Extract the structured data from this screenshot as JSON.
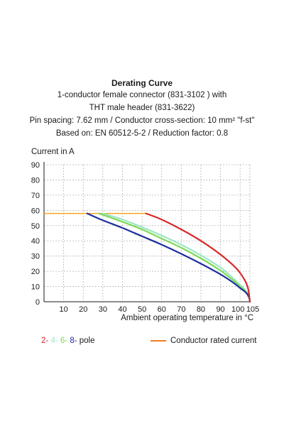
{
  "chart_data": {
    "type": "line",
    "title": "Derating Curve",
    "subtitle_lines": [
      "1-conductor female connector (831-3102 ) with",
      "THT male header (831-3622)",
      "Pin spacing: 7.62 mm / Conductor cross-section: 10 mm² \"f-st\"",
      "Based on: EN 60512-5-2 / Reduction factor: 0.8"
    ],
    "ylabel": "Current in A",
    "xlabel": "Ambient operating temperature in °C",
    "xlim": [
      0,
      105
    ],
    "ylim": [
      0,
      90
    ],
    "xticks": [
      10,
      20,
      30,
      40,
      50,
      60,
      70,
      80,
      90,
      100,
      105
    ],
    "yticks": [
      0,
      10,
      20,
      30,
      40,
      50,
      60,
      70,
      80,
      90
    ],
    "grid": true,
    "rated_current": {
      "value": 58,
      "color": "#f5a623",
      "x_start": 0,
      "x_end": 52
    },
    "series": [
      {
        "name": "2-",
        "color": "#d62a2a",
        "x": [
          52,
          60,
          70,
          80,
          90,
          98,
          102,
          104,
          105
        ],
        "y": [
          58,
          54,
          47.5,
          40,
          31,
          22,
          15,
          9,
          0
        ]
      },
      {
        "name": "4-",
        "color": "#9de6c6",
        "x": [
          30,
          40,
          50,
          60,
          70,
          80,
          90,
          96,
          100,
          103,
          104.5,
          105
        ],
        "y": [
          58,
          54,
          49,
          43.5,
          37.5,
          30.5,
          22.5,
          16,
          11,
          7,
          4,
          0
        ]
      },
      {
        "name": "6-",
        "color": "#7ed957",
        "x": [
          28,
          40,
          50,
          60,
          70,
          80,
          90,
          96,
          100,
          103,
          104.5,
          105
        ],
        "y": [
          58,
          52.5,
          47.5,
          41.5,
          35.5,
          28.5,
          20.5,
          14.5,
          10,
          6.5,
          3.5,
          0
        ]
      },
      {
        "name": "8-",
        "color": "#1c2f9e",
        "x": [
          22,
          30,
          40,
          50,
          60,
          70,
          80,
          90,
          96,
          100,
          103,
          104.5,
          105
        ],
        "y": [
          58,
          53.5,
          48.5,
          43,
          37.5,
          31.5,
          25,
          18,
          13,
          9,
          6,
          3,
          0
        ]
      }
    ],
    "legend": {
      "poles": [
        {
          "label": "2-",
          "color": "#d62a2a"
        },
        {
          "label": "4-",
          "color": "#9de6c6"
        },
        {
          "label": "6-",
          "color": "#7ed957"
        },
        {
          "label": "8-",
          "color": "#1c2f9e"
        }
      ],
      "poles_suffix": " pole",
      "rated_label": "Conductor rated current",
      "rated_color": "#f07d1e"
    }
  }
}
